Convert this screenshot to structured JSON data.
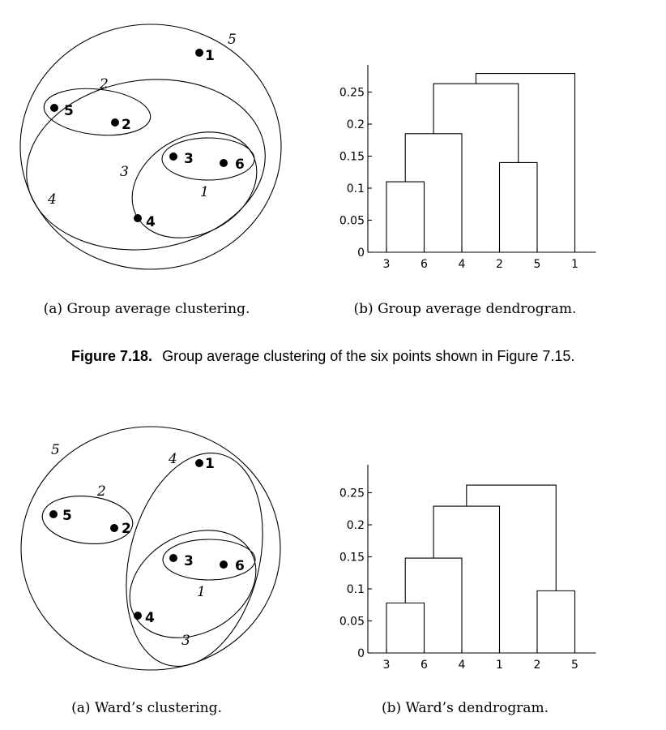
{
  "figure": {
    "label": "Figure 7.18.",
    "caption": "Group average clustering of the six points shown in Figure 7.15."
  },
  "panels": [
    {
      "scatter_caption": "(a) Group average clustering.",
      "dendrogram_caption": "(b) Group average dendrogram.",
      "points": [
        "1",
        "2",
        "3",
        "4",
        "5",
        "6"
      ],
      "cluster_labels": [
        "1",
        "2",
        "3",
        "4",
        "5"
      ]
    },
    {
      "scatter_caption": "(a) Ward’s clustering.",
      "dendrogram_caption": "(b) Ward’s dendrogram.",
      "points": [
        "1",
        "2",
        "3",
        "4",
        "5",
        "6"
      ],
      "cluster_labels": [
        "1",
        "2",
        "3",
        "4",
        "5"
      ]
    }
  ],
  "chart_data": [
    {
      "type": "dendrogram",
      "title": "",
      "leaf_order": [
        "3",
        "6",
        "4",
        "2",
        "5",
        "1"
      ],
      "y_ticks": [
        "0",
        "0.05",
        "0.1",
        "0.15",
        "0.2",
        "0.25"
      ],
      "ylim": [
        0,
        0.3
      ],
      "merges": [
        {
          "members": [
            "3",
            "6"
          ],
          "height": 0.11
        },
        {
          "members": [
            "3,6",
            "4"
          ],
          "height": 0.185
        },
        {
          "members": [
            "2",
            "5"
          ],
          "height": 0.14
        },
        {
          "members": [
            "3,6,4",
            "2,5"
          ],
          "height": 0.263
        },
        {
          "members": [
            "3,6,4,2,5",
            "1"
          ],
          "height": 0.279
        }
      ]
    },
    {
      "type": "dendrogram",
      "title": "",
      "leaf_order": [
        "3",
        "6",
        "4",
        "1",
        "2",
        "5"
      ],
      "y_ticks": [
        "0",
        "0.05",
        "0.1",
        "0.15",
        "0.2",
        "0.25"
      ],
      "ylim": [
        0,
        0.3
      ],
      "merges": [
        {
          "members": [
            "3",
            "6"
          ],
          "height": 0.078
        },
        {
          "members": [
            "2",
            "5"
          ],
          "height": 0.097
        },
        {
          "members": [
            "3,6",
            "4"
          ],
          "height": 0.148
        },
        {
          "members": [
            "3,6,4",
            "1"
          ],
          "height": 0.229
        },
        {
          "members": [
            "3,6,4,1",
            "2,5"
          ],
          "height": 0.262
        }
      ]
    }
  ]
}
